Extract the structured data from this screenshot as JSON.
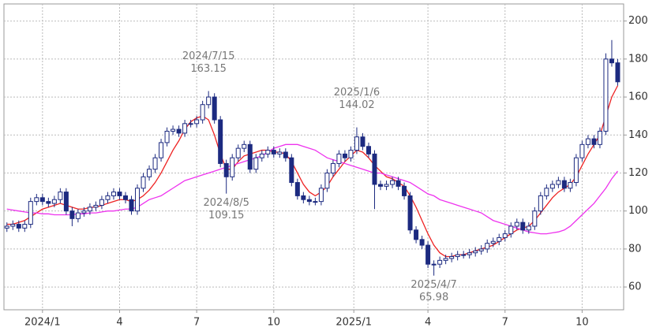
{
  "chart_data": {
    "type": "candlestick",
    "ylim": [
      48,
      209
    ],
    "yticks": [
      60,
      80,
      100,
      120,
      140,
      160,
      180,
      200
    ],
    "xlim": [
      -0.5,
      104
    ],
    "xticks": [
      {
        "value": 6,
        "label": "2024/1"
      },
      {
        "value": 19,
        "label": "4"
      },
      {
        "value": 32,
        "label": "7"
      },
      {
        "value": 45,
        "label": "10"
      },
      {
        "value": 58.5,
        "label": "2025/1"
      },
      {
        "value": 71,
        "label": "4"
      },
      {
        "value": 84,
        "label": "7"
      },
      {
        "value": 97,
        "label": "10"
      }
    ],
    "grid": true,
    "up_color": "#ffffff",
    "down_color": "#1c2a80",
    "edge_color": "#1c2a80",
    "open": [
      91,
      92,
      93,
      91,
      93,
      105,
      107,
      105,
      104,
      106,
      110,
      100,
      96,
      99,
      100,
      102,
      103,
      106,
      108,
      110,
      108,
      106,
      100,
      112,
      118,
      122,
      128,
      136,
      142,
      143,
      141,
      146,
      146,
      148,
      156,
      160,
      148,
      125,
      118,
      128,
      133,
      135,
      122,
      128,
      130,
      132,
      130,
      131,
      128,
      115,
      108,
      106,
      105,
      105,
      112,
      120,
      125,
      130,
      128,
      132,
      139,
      134,
      130,
      114,
      113,
      114,
      116,
      113,
      108,
      90,
      85,
      82,
      72,
      72,
      74,
      75,
      76,
      77,
      77,
      78,
      79,
      80,
      83,
      84,
      86,
      88,
      92,
      94,
      90,
      92,
      100,
      108,
      112,
      114,
      116,
      112,
      115,
      128,
      135,
      138,
      135,
      142,
      180,
      178
    ],
    "high": [
      94,
      95,
      95,
      95,
      107,
      109,
      109,
      107,
      108,
      112,
      112,
      102,
      101,
      102,
      104,
      105,
      108,
      110,
      112,
      112,
      110,
      108,
      114,
      120,
      124,
      130,
      138,
      144,
      145,
      145,
      148,
      148,
      150,
      158,
      163.15,
      162,
      150,
      127,
      130,
      135,
      137,
      137,
      130,
      132,
      134,
      134,
      133,
      133,
      130,
      117,
      110,
      108,
      107,
      114,
      122,
      127,
      132,
      132,
      134,
      144.02,
      141,
      136,
      132,
      116,
      116,
      118,
      118,
      115,
      110,
      92,
      87,
      84,
      74,
      76,
      77,
      78,
      79,
      79,
      80,
      81,
      82,
      85,
      86,
      88,
      90,
      94,
      96,
      96,
      94,
      102,
      110,
      114,
      116,
      118,
      118,
      117,
      130,
      137,
      140,
      140,
      144,
      183,
      190,
      180
    ],
    "low": [
      89,
      90,
      89,
      89,
      91,
      103,
      103,
      102,
      102,
      104,
      98,
      92,
      94,
      97,
      98,
      100,
      101,
      104,
      106,
      106,
      104,
      98,
      98,
      110,
      116,
      120,
      126,
      134,
      140,
      139,
      139,
      144,
      144,
      146,
      154,
      146,
      123,
      109.15,
      116,
      126,
      131,
      120,
      120,
      126,
      128,
      128,
      128,
      126,
      113,
      106,
      104,
      103,
      103,
      103,
      110,
      118,
      123,
      126,
      126,
      130,
      132,
      128,
      101,
      111,
      111,
      112,
      111,
      106,
      88,
      83,
      80,
      70,
      65.98,
      70,
      72,
      73,
      74,
      75,
      75,
      76,
      77,
      78,
      81,
      82,
      84,
      86,
      90,
      88,
      88,
      90,
      98,
      106,
      110,
      112,
      110,
      110,
      113,
      126,
      133,
      133,
      133,
      140,
      176,
      166
    ],
    "close": [
      92,
      93,
      91,
      93,
      105,
      107,
      105,
      104,
      106,
      110,
      100,
      96,
      99,
      100,
      102,
      103,
      106,
      108,
      110,
      108,
      106,
      100,
      112,
      118,
      122,
      128,
      136,
      142,
      143,
      141,
      146,
      146,
      148,
      156,
      160,
      148,
      125,
      118,
      128,
      133,
      135,
      122,
      128,
      130,
      132,
      130,
      131,
      128,
      115,
      108,
      106,
      105,
      105,
      112,
      120,
      125,
      130,
      128,
      132,
      139,
      134,
      130,
      114,
      113,
      114,
      116,
      113,
      108,
      90,
      85,
      82,
      72,
      72,
      74,
      75,
      76,
      77,
      77,
      78,
      79,
      80,
      83,
      84,
      86,
      88,
      92,
      94,
      90,
      92,
      100,
      108,
      112,
      114,
      116,
      112,
      115,
      128,
      135,
      138,
      135,
      142,
      180,
      178,
      168
    ],
    "lines": [
      {
        "color": "#ee2222",
        "values": [
          93,
          93,
          94,
          95,
          97,
          99,
          101,
          102,
          103,
          104,
          103,
          102,
          101,
          101,
          102,
          102,
          103,
          104,
          105,
          106,
          106,
          105,
          106,
          108,
          111,
          115,
          120,
          126,
          132,
          137,
          143,
          147,
          149,
          150,
          148,
          140,
          130,
          122,
          122,
          126,
          129,
          130,
          131,
          132,
          132,
          131,
          131,
          130,
          126,
          120,
          114,
          110,
          108,
          110,
          113,
          118,
          122,
          126,
          129,
          132,
          131,
          128,
          124,
          121,
          118,
          117,
          115,
          113,
          108,
          102,
          95,
          88,
          82,
          78,
          76,
          76,
          77,
          77,
          78,
          79,
          80,
          81,
          82,
          84,
          86,
          88,
          90,
          91,
          92,
          95,
          99,
          103,
          107,
          110,
          112,
          114,
          118,
          124,
          130,
          135,
          140,
          150,
          160,
          166
        ]
      },
      {
        "color": "#ee33ee",
        "values": [
          101,
          100.5,
          100,
          99.5,
          99,
          99,
          98.5,
          98.5,
          98,
          98,
          98,
          98,
          98.5,
          98.5,
          99,
          99,
          99.5,
          100,
          100,
          100.5,
          101,
          101,
          102,
          104,
          106,
          107,
          108,
          110,
          112,
          114,
          116,
          117,
          118,
          119,
          120,
          121,
          122,
          123,
          124,
          125,
          126,
          127,
          128,
          129,
          131,
          133,
          134,
          135,
          135,
          135,
          134,
          133,
          132,
          130,
          128,
          127,
          126,
          125,
          124,
          123,
          122,
          121,
          120,
          120,
          119,
          118,
          117,
          116,
          115,
          113,
          111,
          109,
          108,
          106,
          105,
          104,
          103,
          102,
          101,
          100,
          99,
          97,
          95,
          94,
          93,
          92,
          91,
          90,
          89,
          88.5,
          88,
          88,
          88.5,
          89,
          90,
          92,
          95,
          98,
          101,
          104,
          108,
          112,
          117,
          121
        ]
      }
    ],
    "annotations": [
      {
        "date": "2024/7/15",
        "value": 163.15
      },
      {
        "date": "2024/8/5",
        "value": 109.15
      },
      {
        "date": "2025/1/6",
        "value": 144.02
      },
      {
        "date": "2025/4/7",
        "value": 65.98
      }
    ]
  }
}
